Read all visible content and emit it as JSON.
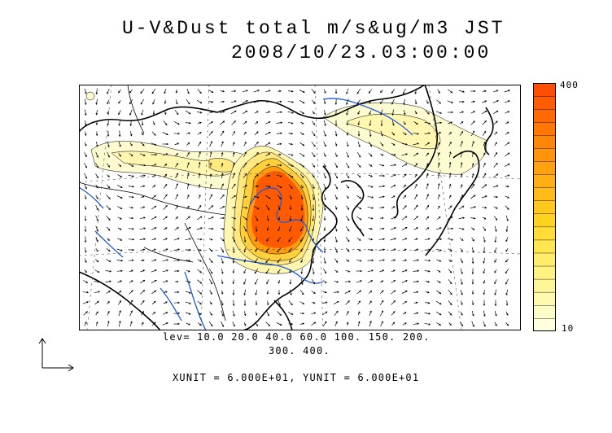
{
  "title": {
    "line1": "U-V&Dust total m/s&ug/m3 JST",
    "line2": "2008/10/23.03:00:00"
  },
  "colorbar": {
    "max_label": "400",
    "min_label": "10",
    "colors": [
      "#ffffe0",
      "#fffdc8",
      "#fffab0",
      "#fff698",
      "#fff280",
      "#ffec68",
      "#ffe550",
      "#ffdd38",
      "#ffd320",
      "#ffc81c",
      "#ffbc18",
      "#ffaf14",
      "#ffa210",
      "#ff940c",
      "#ff8608",
      "#ff7804",
      "#ff6a00",
      "#ff5c00",
      "#ff4e00"
    ]
  },
  "legend": {
    "lev_line1": "lev= 10.0 20.0 40.0 60.0 100. 150. 200.",
    "lev_line2": "300. 400.",
    "units": "XUNIT = 6.000E+01, YUNIT = 6.000E+01"
  },
  "colors": {
    "river": "#1e5adc",
    "coast": "#000000",
    "dust_low": "#fffbd0",
    "dust_high": "#ff5a00"
  }
}
